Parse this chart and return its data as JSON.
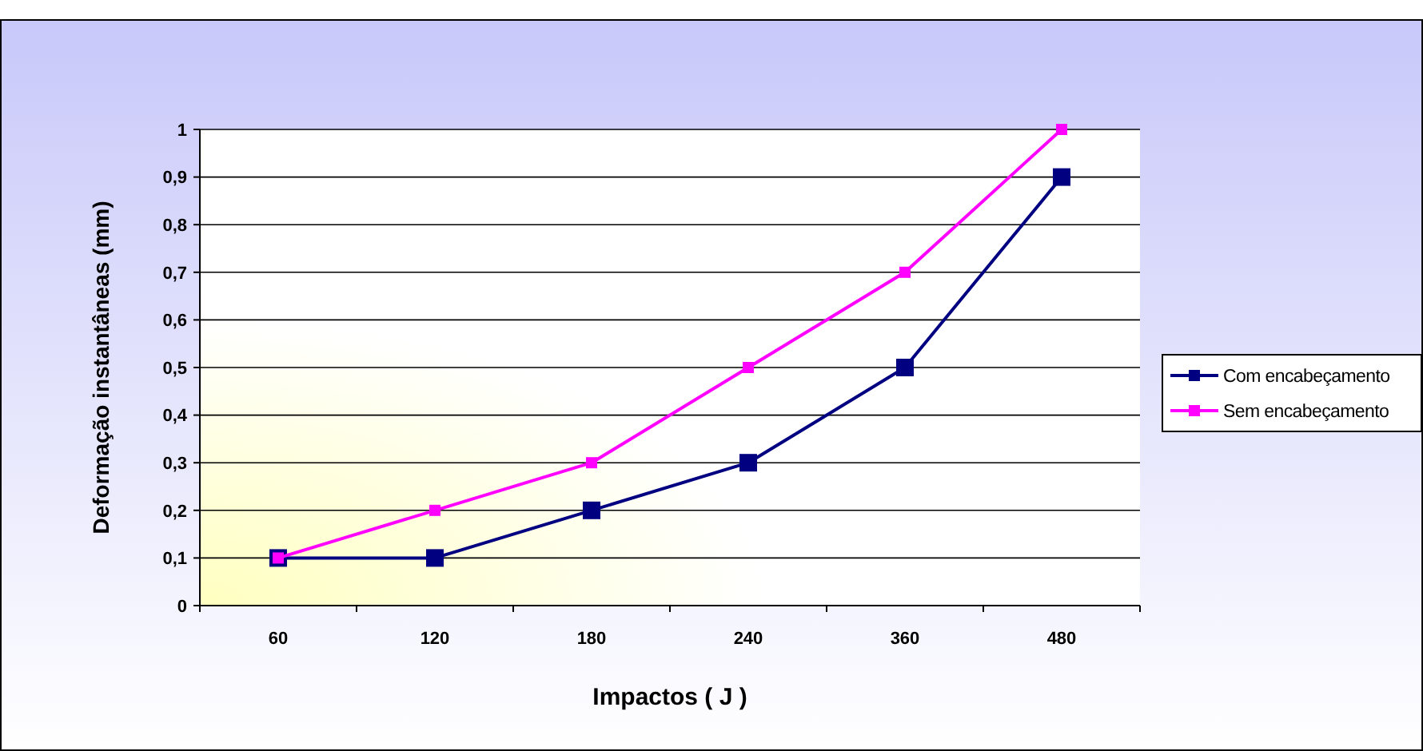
{
  "chart_data": {
    "type": "line",
    "xlabel": "Impactos ( J )",
    "ylabel": "Deformação instantâneas (mm)",
    "categories": [
      "60",
      "120",
      "180",
      "240",
      "360",
      "480"
    ],
    "series": [
      {
        "name": "Com encabeçamento",
        "color": "#000080",
        "values": [
          0.1,
          0.1,
          0.2,
          0.3,
          0.5,
          0.9
        ]
      },
      {
        "name": "Sem encabeçamento",
        "color": "#ff00ff",
        "values": [
          0.1,
          0.2,
          0.3,
          0.5,
          0.7,
          1.0
        ]
      }
    ],
    "ylim": [
      0,
      1
    ],
    "yticks": [
      0,
      {
        "value": 0.1,
        "label": "0,1"
      },
      {
        "value": 0.2,
        "label": "0,2"
      },
      {
        "value": 0.3,
        "label": "0,3"
      },
      {
        "value": 0.4,
        "label": "0,4"
      },
      {
        "value": 0.5,
        "label": "0,5"
      },
      {
        "value": 0.6,
        "label": "0,6"
      },
      {
        "value": 0.7,
        "label": "0,7"
      },
      {
        "value": 0.8,
        "label": "0,8"
      },
      {
        "value": 0.9,
        "label": "0,9"
      },
      1
    ],
    "grid": "y",
    "legend": "right",
    "marker": "square",
    "line_style": "solid"
  }
}
